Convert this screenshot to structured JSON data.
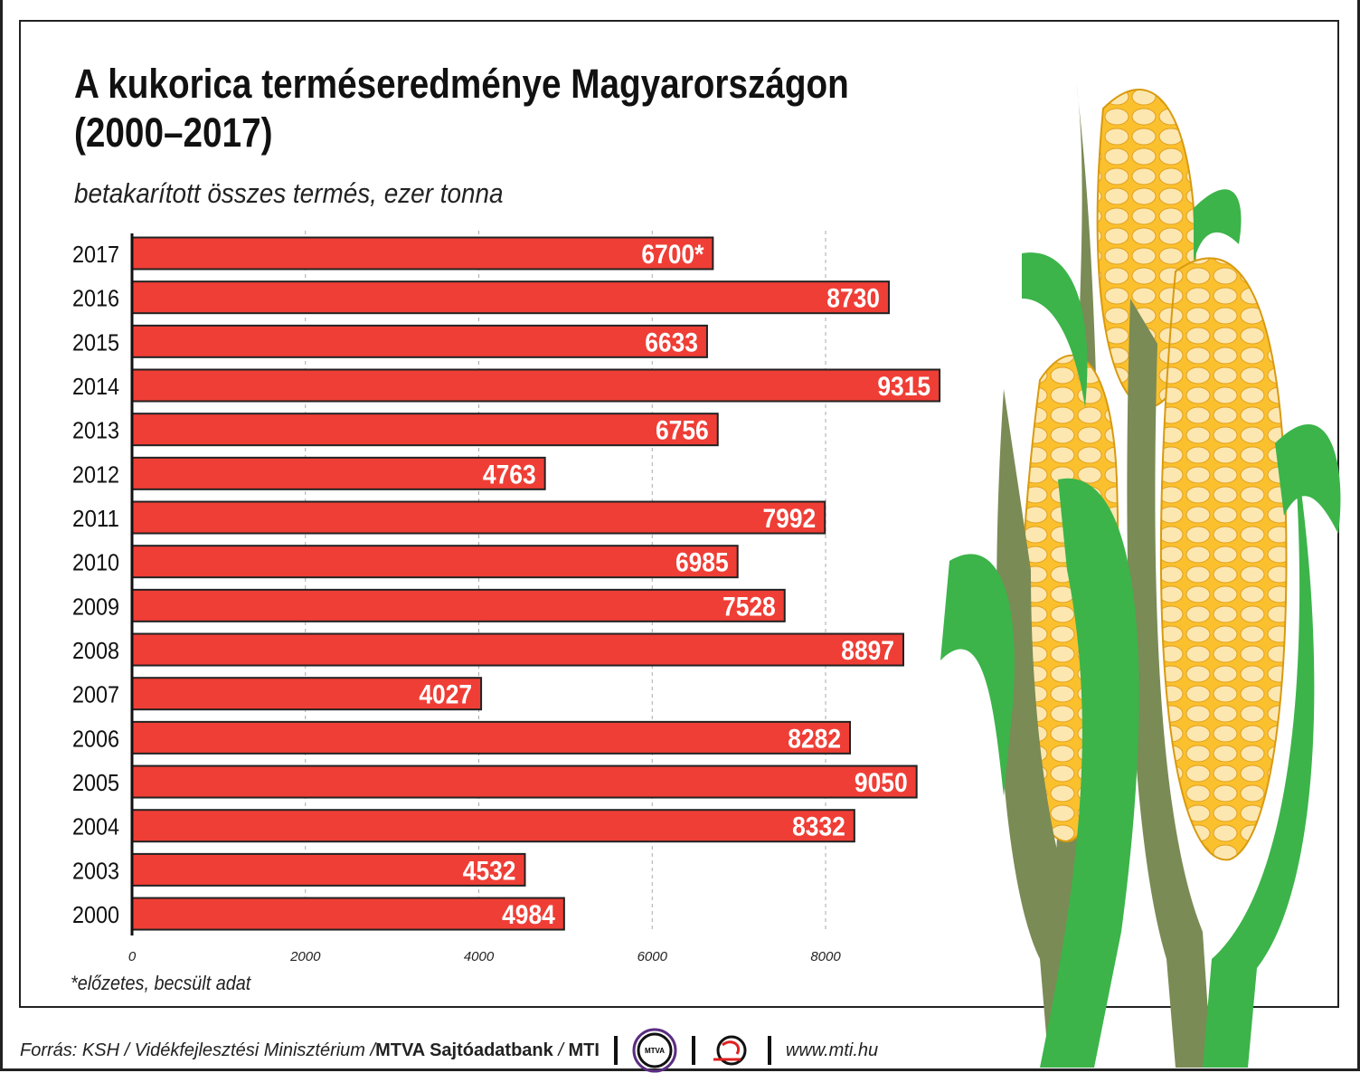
{
  "title_line1": "A kukorica terméseredménye Magyarországon",
  "title_line2": "(2000–2017)",
  "subtitle": "betakarított összes termés, ezer tonna",
  "note": "*előzetes, becsült adat",
  "footer": {
    "source_prefix": "Forrás: KSH / Vidékfejlesztési Minisztérium / ",
    "source_bold1": "MTVA Sajtóadatbank",
    "slash": " / ",
    "source_bold2": "MTI",
    "logo_mtva": "MTVA",
    "url": "www.mti.hu"
  },
  "colors": {
    "bar": "#ef3e36",
    "bar_border": "#222222",
    "grid": "#aaaaaa",
    "corn_yellow": "#fbc02d",
    "leaf_green": "#3cb44a",
    "husk": "#7a8b55"
  },
  "chart_data": {
    "type": "bar",
    "orientation": "horizontal",
    "title": "A kukorica terméseredménye Magyarországon (2000–2017)",
    "subtitle": "betakarított összes termés, ezer tonna",
    "categories": [
      "2017",
      "2016",
      "2015",
      "2014",
      "2013",
      "2012",
      "2011",
      "2010",
      "2009",
      "2008",
      "2007",
      "2006",
      "2005",
      "2004",
      "2003",
      "2000"
    ],
    "values": [
      6700,
      8730,
      6633,
      9315,
      6756,
      4763,
      7992,
      6985,
      7528,
      8897,
      4027,
      8282,
      9050,
      8332,
      4532,
      4984
    ],
    "value_labels": [
      "6700*",
      "8730",
      "6633",
      "9315",
      "6756",
      "4763",
      "7992",
      "6985",
      "7528",
      "8897",
      "4027",
      "8282",
      "9050",
      "8332",
      "4532",
      "4984"
    ],
    "xticks": [
      "0",
      "2000",
      "4000",
      "6000",
      "8000"
    ],
    "xlim": [
      0,
      8000
    ],
    "grid": true,
    "annotation": "*előzetes, becsült adat"
  }
}
